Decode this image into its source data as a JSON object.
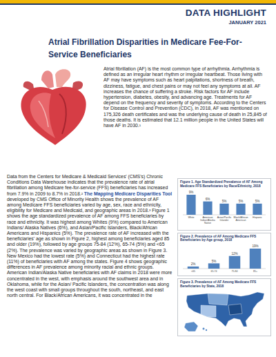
{
  "header": {
    "label": "DATA HIGHLIGHT",
    "date": "JANUARY 2021"
  },
  "title": "Atrial Fibrillation Disparities in Medicare Fee-For-Service Beneficiaries",
  "intro": "Atrial fibrillation (AF) is the most common type of arrhythmia. Arrhythmia is defined as an irregular heart rhythm or irregular heartbeat. Those living with AF may have symptoms such as heart palpitations, shortness of breath, dizziness, fatigue, and chest pains or may not feel any symptoms at all. AF increases the chance of suffering a stroke. Risk factors for AF include hypertension, diabetes, obesity, and advancing age. Treatments for AF depend on the frequency and severity of symptoms. According to the Centers for Disease Control and Prevention (CDC), in 2018, AF was mentioned on 175,326 death certificates and was the underlying cause of death in 25,845 of those deaths. It is estimated that 12.1 million people in the United States will have AF in 2030.¹",
  "body": {
    "before": "Data from the Centers for Medicare & Medicaid Services' (CMS's) Chronic Conditions Data Warehouse indicates that the prevalence rate of atrial fibrillation among Medicare fee-for-service (FFS) beneficiaries has increased from 7.9% in 2009 to 8.7% in 2018.² ",
    "link": "The Mapping Medicare Disparities Tool",
    "after": " developed by CMS Office of Minority Health shows the prevalence of AF among Medicare FFS beneficiaries varied by age, sex, race and ethnicity, eligibility for Medicare and Medicaid, and geographic areas in 2018.³ Figure 1 shows the age standardized prevalence of AF among FFS beneficiaries by race and ethnicity. It was highest among Whites (9%) compared to American Indians/ Alaska Natives (6%), and Asian/Pacific Islanders, Black/African Americans and Hispanics (5%). The prevalence rate of AF increased with the beneficiaries' age as shown in Figure 2, highest among beneficiaries aged 85 and older (19%), followed by age groups 75-84 (12%), 65-74 (5%) and <65 (2%). The prevalence was varied by geographic areas as shown in Figure 3. New Mexico had the lowest rate (5%) and Connecticut had the highest rate (11%) of beneficiaries with AF among the states. Figure 4 shows geographic differences in AF prevalence among minority racial and ethnic groups. American Indian/Alaska Native beneficiaries with AF claims in 2018 were more concentrated in the west, with emphasis around the southwest area and in Oklahoma, while for the Asian/ Pacific Islanders, the concentration was along the west coast with small groups throughout the south, northeast, and east north central. For Black/African Americans, it was concentrated in the"
  },
  "chart_data": [
    {
      "type": "bar",
      "title": "Figure 1. Age Standardized Prevalence of AF Among Medicare FFS Beneficiaries by Race/Ethnicity, 2018",
      "categories": [
        "White",
        "American Indian/Alaska Native",
        "Asian/Pacific Islander",
        "Black/African American",
        "Hispanic"
      ],
      "values": [
        9,
        6,
        5,
        5,
        5
      ],
      "value_labels": [
        "9%",
        "6%",
        "5%",
        "5%",
        "5%"
      ],
      "color": "#4f81bd",
      "data_labels": true,
      "tick_labels": "x"
    },
    {
      "type": "bar",
      "title": "Figure 2. Prevalence of AF Among Medicare FFS Beneficiaries by Age group, 2018",
      "categories": [
        "<65",
        "65-74",
        "75-84",
        "85+"
      ],
      "values": [
        2,
        5,
        12,
        19
      ],
      "value_labels": [
        "2%",
        "5%",
        "12%",
        "19%"
      ],
      "color": "#4f81bd",
      "data_labels": true,
      "tick_labels": "x"
    }
  ],
  "map": {
    "title": "Figure 3. Prevalence of AF Among Medicare FFS Beneficiaries by State, 2018"
  }
}
